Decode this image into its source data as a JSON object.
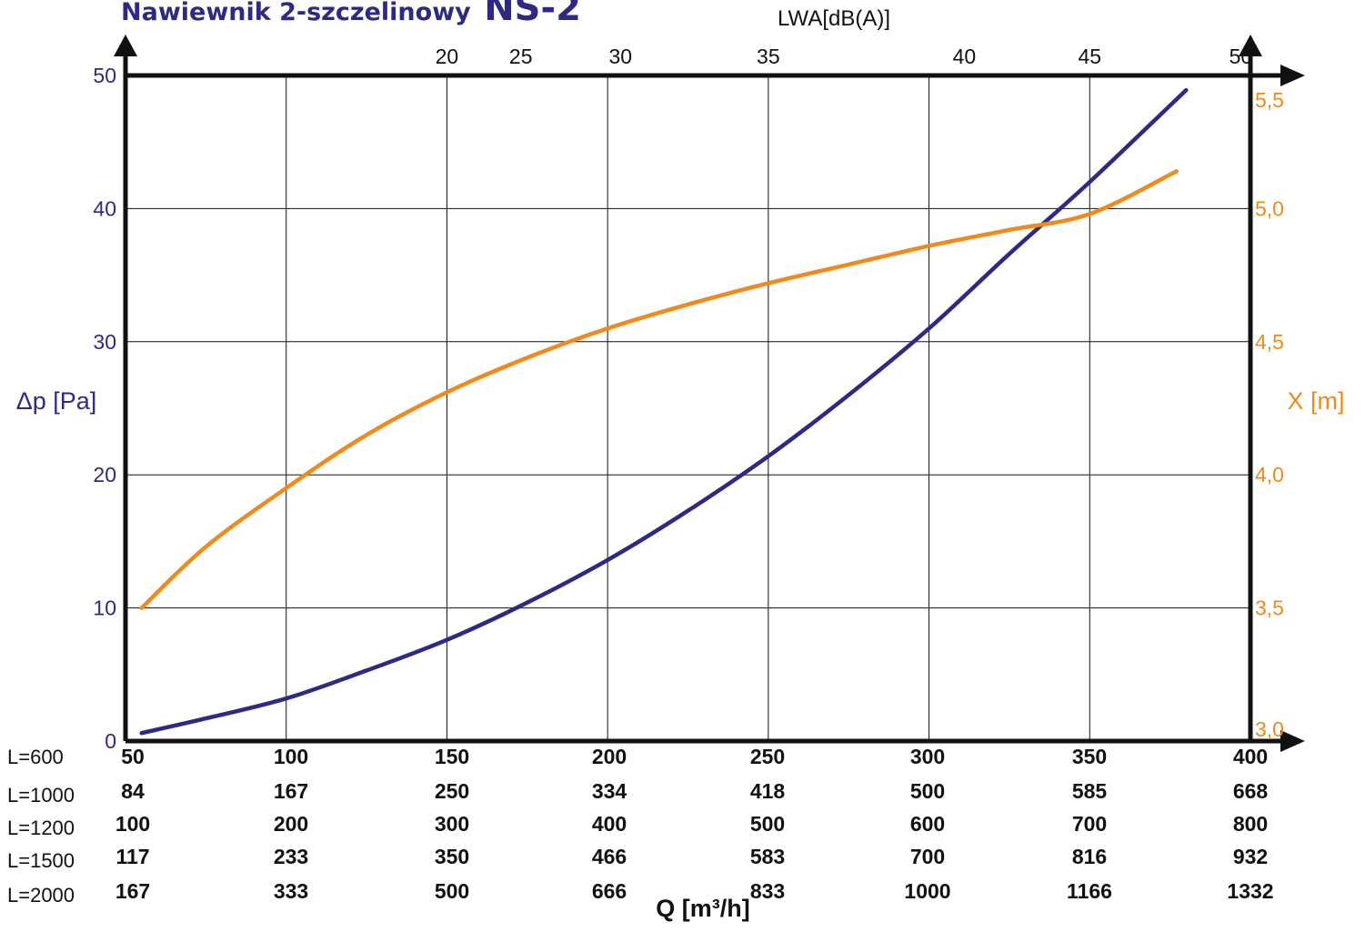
{
  "chart_data": {
    "type": "line",
    "title": "Nawiewnik 2-szczelinowy",
    "title_model": "NS-2",
    "ylabel_left": "Δp [Pa]",
    "ylabel_right": "X [m]",
    "xlabel_top": "LWA[dB(A)]",
    "xlabel_bottom": "Q [m³/h]",
    "colors": {
      "pressure": "#2e2a83",
      "throw": "#f08a1c",
      "grid": "#111111"
    },
    "grid": true,
    "xlim": [
      50,
      400
    ],
    "ylim_left": [
      0,
      50
    ],
    "ylim_right": [
      3.0,
      5.5
    ],
    "yticks_left": [
      "0",
      "10",
      "20",
      "30",
      "40",
      "50"
    ],
    "yticks_right": [
      "3,0",
      "3,5",
      "4,0",
      "4,5",
      "5,0",
      "5,5"
    ],
    "top_ticks": [
      {
        "label": "20",
        "q": 150
      },
      {
        "label": "25",
        "q": 173
      },
      {
        "label": "30",
        "q": 204
      },
      {
        "label": "35",
        "q": 250
      },
      {
        "label": "40",
        "q": 311
      },
      {
        "label": "45",
        "q": 350
      },
      {
        "label": "50",
        "q": 397
      }
    ],
    "q_rows": [
      {
        "label": "L=600",
        "values": [
          "50",
          "100",
          "150",
          "200",
          "250",
          "300",
          "350",
          "400"
        ]
      },
      {
        "label": "L=1000",
        "values": [
          "84",
          "167",
          "250",
          "334",
          "418",
          "500",
          "585",
          "668"
        ]
      },
      {
        "label": "L=1200",
        "values": [
          "100",
          "200",
          "300",
          "400",
          "500",
          "600",
          "700",
          "800"
        ]
      },
      {
        "label": "L=1500",
        "values": [
          "117",
          "233",
          "350",
          "466",
          "583",
          "700",
          "816",
          "932"
        ]
      },
      {
        "label": "L=2000",
        "values": [
          "167",
          "333",
          "500",
          "666",
          "833",
          "1000",
          "1166",
          "1332"
        ]
      }
    ],
    "series": [
      {
        "axis": "left",
        "x": [
          55,
          75,
          100,
          125,
          150,
          175,
          200,
          225,
          250,
          275,
          300,
          325,
          350,
          380
        ],
        "y": [
          0.6,
          1.7,
          3.2,
          5.3,
          7.6,
          10.4,
          13.6,
          17.3,
          21.4,
          26.0,
          31.0,
          36.6,
          42.0,
          48.9
        ]
      },
      {
        "axis": "right",
        "x": [
          55,
          75,
          100,
          125,
          150,
          175,
          200,
          225,
          250,
          275,
          300,
          325,
          350,
          377
        ],
        "y": [
          3.5,
          3.73,
          3.95,
          4.15,
          4.31,
          4.44,
          4.55,
          4.64,
          4.72,
          4.79,
          4.86,
          4.92,
          4.98,
          5.14
        ]
      }
    ]
  }
}
